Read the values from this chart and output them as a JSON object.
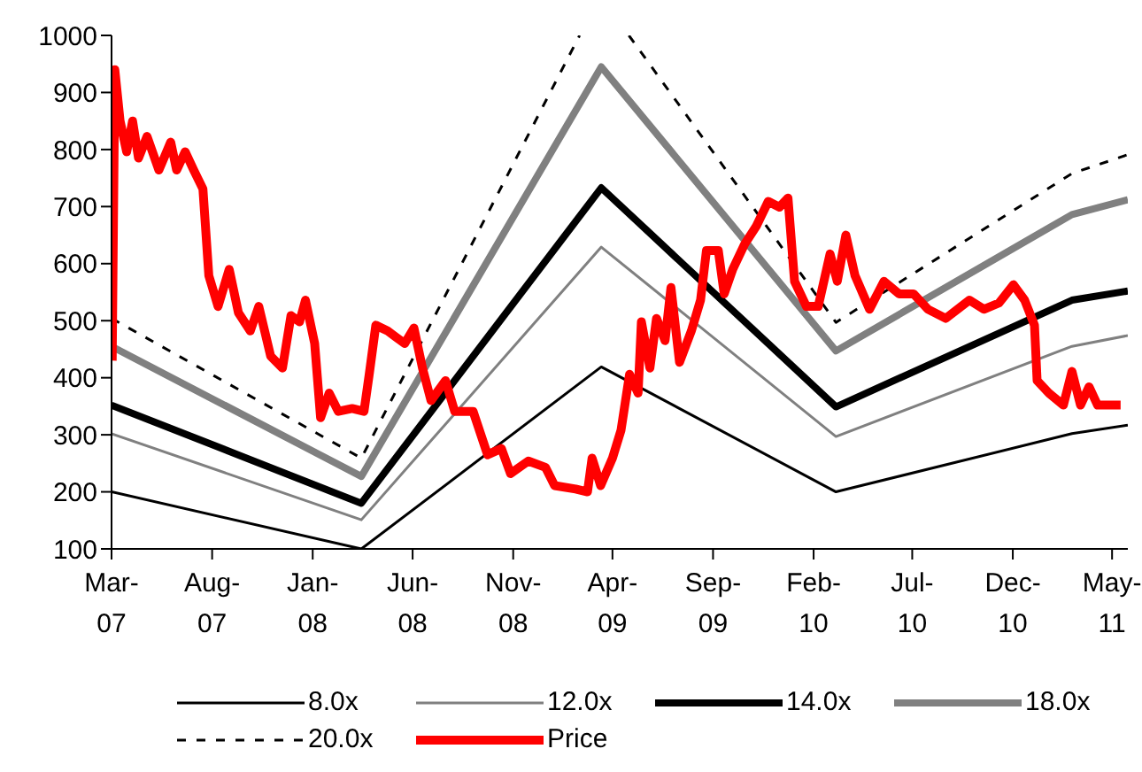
{
  "chart_data": {
    "type": "line",
    "xlim": [
      "2007-03-01",
      "2011-05-25"
    ],
    "ylim": [
      100,
      1000
    ],
    "yticks": [
      100,
      200,
      300,
      400,
      500,
      600,
      700,
      800,
      900,
      1000
    ],
    "xticks": [
      {
        "value": "2007-03",
        "label": "Mar-07"
      },
      {
        "value": "2007-08",
        "label": "Aug-07"
      },
      {
        "value": "2008-01",
        "label": "Jan-08"
      },
      {
        "value": "2008-06",
        "label": "Jun-08"
      },
      {
        "value": "2008-11",
        "label": "Nov-08"
      },
      {
        "value": "2009-04",
        "label": "Apr-09"
      },
      {
        "value": "2009-09",
        "label": "Sep-09"
      },
      {
        "value": "2010-02",
        "label": "Feb-10"
      },
      {
        "value": "2010-07",
        "label": "Jul-10"
      },
      {
        "value": "2010-12",
        "label": "Dec-10"
      },
      {
        "value": "2011-05",
        "label": "May-11"
      }
    ],
    "legend": "bottom",
    "marker": "none",
    "series": [
      {
        "name": "8.0x",
        "color": "#000000",
        "x": [
          "2007-03-01",
          "2008-03-15",
          "2009-03-15",
          "2010-03-07",
          "2011-03-01",
          "2011-05-25"
        ],
        "values": [
          200,
          100,
          419,
          200,
          302,
          317
        ]
      },
      {
        "name": "12.0x",
        "color": "#808080",
        "x": [
          "2007-03-01",
          "2008-03-15",
          "2009-03-15",
          "2010-03-07",
          "2011-03-01",
          "2011-05-25"
        ],
        "values": [
          302,
          151,
          629,
          297,
          455,
          474
        ]
      },
      {
        "name": "14.0x",
        "color": "#000000",
        "x": [
          "2007-03-01",
          "2008-03-15",
          "2009-03-15",
          "2010-03-07",
          "2011-03-01",
          "2011-05-25"
        ],
        "values": [
          352,
          180,
          733,
          349,
          536,
          552
        ]
      },
      {
        "name": "18.0x",
        "color": "#808080",
        "x": [
          "2007-03-01",
          "2008-03-15",
          "2009-03-15",
          "2010-03-07",
          "2011-03-01",
          "2011-05-25"
        ],
        "values": [
          455,
          227,
          945,
          447,
          686,
          712
        ]
      },
      {
        "name": "20.0x",
        "color": "#000000",
        "line_style": "dashed",
        "x": [
          "2007-03-01",
          "2008-03-15",
          "2009-02-10",
          "2009-03-15",
          "2009-04-26",
          "2010-03-07",
          "2011-03-01",
          "2011-05-25"
        ],
        "values": [
          504,
          259,
          1000,
          null,
          1000,
          497,
          758,
          791
        ]
      },
      {
        "name": "Price",
        "color": "#ff0000",
        "x": [
          "2007-03-02",
          "2007-03-06",
          "2007-03-14",
          "2007-03-24",
          "2007-04-02",
          "2007-04-11",
          "2007-04-24",
          "2007-05-12",
          "2007-05-30",
          "2007-06-08",
          "2007-06-21",
          "2007-07-04",
          "2007-07-18",
          "2007-07-27",
          "2007-08-10",
          "2007-08-27",
          "2007-09-10",
          "2007-09-28",
          "2007-10-11",
          "2007-10-29",
          "2007-11-16",
          "2007-11-29",
          "2007-12-12",
          "2007-12-21",
          "2008-01-04",
          "2008-01-13",
          "2008-01-26",
          "2008-02-09",
          "2008-03-01",
          "2008-03-19",
          "2008-03-27",
          "2008-04-06",
          "2008-04-24",
          "2008-05-07",
          "2008-05-20",
          "2008-06-03",
          "2008-06-16",
          "2008-06-29",
          "2008-07-21",
          "2008-08-04",
          "2008-09-01",
          "2008-09-23",
          "2008-10-14",
          "2008-10-28",
          "2008-11-24",
          "2008-12-20",
          "2009-01-03",
          "2009-02-04",
          "2009-02-22",
          "2009-03-01",
          "2009-03-14",
          "2009-04-01",
          "2009-04-14",
          "2009-04-27",
          "2009-05-10",
          "2009-05-15",
          "2009-05-28",
          "2009-06-07",
          "2009-06-20",
          "2009-06-29",
          "2009-07-12",
          "2009-07-30",
          "2009-08-13",
          "2009-08-22",
          "2009-09-09",
          "2009-09-18",
          "2009-10-01",
          "2009-10-19",
          "2009-11-06",
          "2009-11-24",
          "2009-12-11",
          "2009-12-24",
          "2010-01-03",
          "2010-01-21",
          "2010-02-08",
          "2010-02-26",
          "2010-03-09",
          "2010-03-22",
          "2010-04-05",
          "2010-04-27",
          "2010-05-19",
          "2010-06-11",
          "2010-07-03",
          "2010-07-25",
          "2010-08-21",
          "2010-09-26",
          "2010-10-18",
          "2010-11-10",
          "2010-12-02",
          "2010-12-19",
          "2011-01-03",
          "2011-01-07",
          "2011-01-25",
          "2011-02-16",
          "2011-03-01",
          "2011-03-14",
          "2011-03-27",
          "2011-04-09",
          "2011-05-01",
          "2011-05-14"
        ],
        "values": [
          430,
          940,
          850,
          796,
          850,
          785,
          823,
          764,
          813,
          764,
          796,
          764,
          731,
          579,
          525,
          590,
          514,
          482,
          525,
          438,
          417,
          509,
          498,
          536,
          460,
          330,
          373,
          341,
          346,
          341,
          406,
          492,
          482,
          471,
          460,
          487,
          417,
          360,
          395,
          341,
          341,
          265,
          276,
          232,
          254,
          243,
          211,
          205,
          200,
          259,
          211,
          259,
          308,
          406,
          373,
          498,
          417,
          504,
          465,
          558,
          427,
          482,
          536,
          623,
          623,
          547,
          590,
          634,
          666,
          709,
          699,
          715,
          569,
          525,
          525,
          617,
          569,
          650,
          579,
          520,
          569,
          547,
          547,
          520,
          504,
          536,
          520,
          531,
          563,
          536,
          492,
          395,
          373,
          352,
          411,
          352,
          384,
          352,
          352,
          352
        ]
      }
    ]
  }
}
